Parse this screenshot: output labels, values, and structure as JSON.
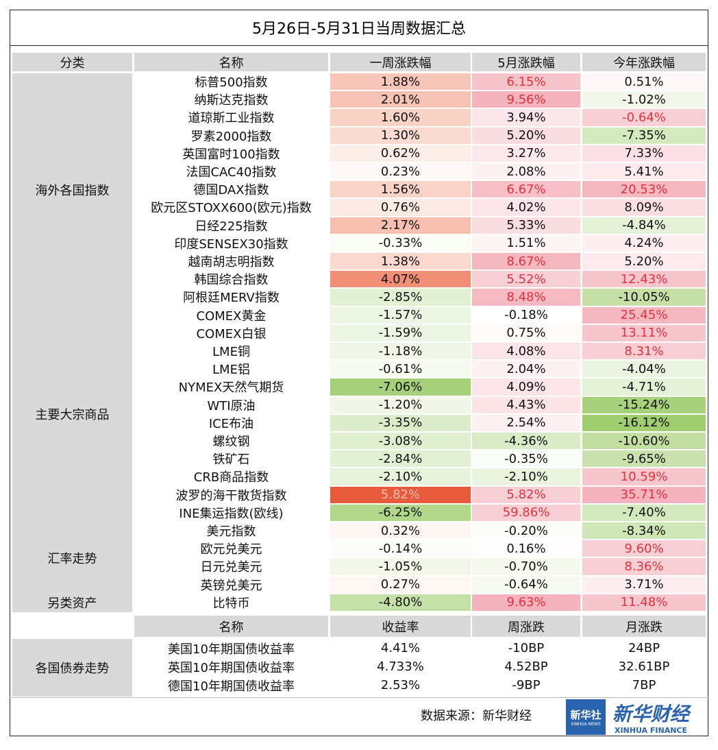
{
  "title": "5月26日-5月31日当周数据汇总",
  "header": [
    "分类",
    "名称",
    "一周涨跌幅",
    "5月涨跌幅",
    "今年涨跌幅"
  ],
  "groups": [
    {
      "label": "海外各国指数",
      "rows": [
        {
          "name": "标普500指数",
          "cells": [
            "1.88%",
            "6.15%",
            "0.51%"
          ],
          "bg": [
            "#f7c6b9",
            "#f7c3cb",
            "#fdf7f8"
          ],
          "fg": [
            "#111",
            "#e8303b",
            "#111"
          ]
        },
        {
          "name": "纳斯达克指数",
          "cells": [
            "2.01%",
            "9.56%",
            "-1.02%"
          ],
          "bg": [
            "#f7c3b5",
            "#f4b3bd",
            "#f2f8ec"
          ],
          "fg": [
            "#111",
            "#e8303b",
            "#111"
          ]
        },
        {
          "name": "道琼斯工业指数",
          "cells": [
            "1.60%",
            "3.94%",
            "-0.64%"
          ],
          "bg": [
            "#f9d2c6",
            "#fbe6e9",
            "#f8cfd5"
          ],
          "fg": [
            "#111",
            "#111",
            "#e8303b"
          ]
        },
        {
          "name": "罗素2000指数",
          "cells": [
            "1.30%",
            "5.20%",
            "-7.35%"
          ],
          "bg": [
            "#fadbd2",
            "#fadde1",
            "#d5e9bf"
          ],
          "fg": [
            "#111",
            "#111",
            "#111"
          ]
        },
        {
          "name": "英国富时100指数",
          "cells": [
            "0.62%",
            "3.27%",
            "7.33%"
          ],
          "bg": [
            "#fdeee9",
            "#fce9ec",
            "#fbe1e5"
          ],
          "fg": [
            "#111",
            "#111",
            "#111"
          ]
        },
        {
          "name": "法国CAC40指数",
          "cells": [
            "0.23%",
            "2.08%",
            "5.41%"
          ],
          "bg": [
            "#fef8f6",
            "#fdf1f3",
            "#fceaed"
          ],
          "fg": [
            "#111",
            "#111",
            "#111"
          ]
        },
        {
          "name": "德国DAX指数",
          "cells": [
            "1.56%",
            "6.67%",
            "20.53%"
          ],
          "bg": [
            "#f9d3c7",
            "#f7c0c8",
            "#f5b8c1"
          ],
          "fg": [
            "#111",
            "#e8303b",
            "#e8303b"
          ]
        },
        {
          "name": "欧元区STOXX600(欧元)指数",
          "cells": [
            "0.76%",
            "4.02%",
            "8.09%"
          ],
          "bg": [
            "#fcebe5",
            "#fbe5e8",
            "#fbdfe3"
          ],
          "fg": [
            "#111",
            "#111",
            "#111"
          ]
        },
        {
          "name": "日经225指数",
          "cells": [
            "2.17%",
            "5.33%",
            "-4.84%"
          ],
          "bg": [
            "#f6bfb0",
            "#fadde1",
            "#e6f2d8"
          ],
          "fg": [
            "#111",
            "#111",
            "#111"
          ]
        },
        {
          "name": "印度SENSEX30指数",
          "cells": [
            "-0.33%",
            "1.51%",
            "4.24%"
          ],
          "bg": [
            "#fafcf6",
            "#fdf4f5",
            "#fcedf0"
          ],
          "fg": [
            "#111",
            "#111",
            "#111"
          ]
        },
        {
          "name": "越南胡志明指数",
          "cells": [
            "1.38%",
            "8.67%",
            "5.20%"
          ],
          "bg": [
            "#fad8cf",
            "#f5b8c1",
            "#fceaed"
          ],
          "fg": [
            "#111",
            "#e8303b",
            "#111"
          ]
        },
        {
          "name": "韩国综合指数",
          "cells": [
            "4.07%",
            "5.52%",
            "12.43%"
          ],
          "bg": [
            "#f08e76",
            "#f8cfd5",
            "#f7c6cd"
          ],
          "fg": [
            "#111",
            "#e8303b",
            "#e8303b"
          ]
        },
        {
          "name": "阿根廷MERV指数",
          "cells": [
            "-2.85%",
            "8.48%",
            "-10.05%"
          ],
          "bg": [
            "#e2f0d3",
            "#f5b9c2",
            "#c5e0a6"
          ],
          "fg": [
            "#111",
            "#e8303b",
            "#111"
          ]
        }
      ]
    },
    {
      "label": "主要大宗商品",
      "rows": [
        {
          "name": "COMEX黄金",
          "cells": [
            "-1.57%",
            "-0.18%",
            "25.45%"
          ],
          "bg": [
            "#edf6e4",
            "#ffffff",
            "#f5b8c1"
          ],
          "fg": [
            "#111",
            "#111",
            "#e8303b"
          ]
        },
        {
          "name": "COMEX白银",
          "cells": [
            "-1.59%",
            "0.75%",
            "13.11%"
          ],
          "bg": [
            "#edf6e4",
            "#fefafa",
            "#f7c6cd"
          ],
          "fg": [
            "#111",
            "#111",
            "#e8303b"
          ]
        },
        {
          "name": "LME铜",
          "cells": [
            "-1.18%",
            "4.08%",
            "8.31%"
          ],
          "bg": [
            "#f0f7e9",
            "#fbe5e8",
            "#f8cfd5"
          ],
          "fg": [
            "#111",
            "#111",
            "#e8303b"
          ]
        },
        {
          "name": "LME铝",
          "cells": [
            "-0.61%",
            "2.04%",
            "-4.04%"
          ],
          "bg": [
            "#f6faf1",
            "#fdf1f3",
            "#ebf4e0"
          ],
          "fg": [
            "#111",
            "#111",
            "#111"
          ]
        },
        {
          "name": "NYMEX天然气期货",
          "cells": [
            "-7.06%",
            "4.09%",
            "-4.71%"
          ],
          "bg": [
            "#a6d17a",
            "#fbe5e8",
            "#e6f2d8"
          ],
          "fg": [
            "#111",
            "#111",
            "#111"
          ]
        },
        {
          "name": "WTI原油",
          "cells": [
            "-1.20%",
            "4.43%",
            "-15.24%"
          ],
          "bg": [
            "#f0f7e9",
            "#fbe3e6",
            "#a7d17b"
          ],
          "fg": [
            "#111",
            "#111",
            "#111"
          ]
        },
        {
          "name": "ICE布油",
          "cells": [
            "-3.35%",
            "2.54%",
            "-16.12%"
          ],
          "bg": [
            "#ddedcb",
            "#fcf0f2",
            "#9fcd6f"
          ],
          "fg": [
            "#111",
            "#111",
            "#111"
          ]
        },
        {
          "name": "螺纹钢",
          "cells": [
            "-3.08%",
            "-4.36%",
            "-10.60%"
          ],
          "bg": [
            "#e0efcf",
            "#d9ebc6",
            "#c2dfa1"
          ],
          "fg": [
            "#111",
            "#111",
            "#111"
          ]
        },
        {
          "name": "铁矿石",
          "cells": [
            "-2.84%",
            "-0.35%",
            "-9.65%"
          ],
          "bg": [
            "#e2f0d3",
            "#fbfdf8",
            "#c9e2ad"
          ],
          "fg": [
            "#111",
            "#111",
            "#111"
          ]
        },
        {
          "name": "CRB商品指数",
          "cells": [
            "-2.10%",
            "-2.10%",
            "10.59%"
          ],
          "bg": [
            "#e8f3dc",
            "#e9f3de",
            "#f7c6cd"
          ],
          "fg": [
            "#111",
            "#111",
            "#e8303b"
          ]
        },
        {
          "name": "波罗的海干散货指数",
          "cells": [
            "5.82%",
            "5.82%",
            "35.71%"
          ],
          "bg": [
            "#e85a3c",
            "#f8cfd5",
            "#f4b3bd"
          ],
          "fg": [
            "#ffc2b0",
            "#e8303b",
            "#e8303b"
          ]
        },
        {
          "name": "INE集运指数(欧线)",
          "cells": [
            "-6.25%",
            "59.86%",
            "-7.40%"
          ],
          "bg": [
            "#b2d78b",
            "#f8cfd5",
            "#d5e9bf"
          ],
          "fg": [
            "#111",
            "#e8303b",
            "#111"
          ]
        }
      ]
    },
    {
      "label": "汇率走势",
      "rows": [
        {
          "name": "美元指数",
          "cells": [
            "0.32%",
            "-0.20%",
            "-8.34%"
          ],
          "bg": [
            "#fef6f3",
            "#fcfdfa",
            "#cfe6b6"
          ],
          "fg": [
            "#111",
            "#111",
            "#111"
          ]
        },
        {
          "name": "欧元兑美元",
          "cells": [
            "-0.14%",
            "0.16%",
            "9.60%"
          ],
          "bg": [
            "#fcfdfa",
            "#fefcfc",
            "#f8cfd5"
          ],
          "fg": [
            "#111",
            "#111",
            "#e8303b"
          ]
        },
        {
          "name": "日元兑美元",
          "cells": [
            "-1.05%",
            "-0.70%",
            "8.36%"
          ],
          "bg": [
            "#f1f8ea",
            "#f5faef",
            "#f8cfd5"
          ],
          "fg": [
            "#111",
            "#111",
            "#e8303b"
          ]
        },
        {
          "name": "英镑兑美元",
          "cells": [
            "0.27%",
            "-0.64%",
            "3.71%"
          ],
          "bg": [
            "#fef7f4",
            "#f6faf1",
            "#fcedf0"
          ],
          "fg": [
            "#111",
            "#111",
            "#111"
          ]
        }
      ]
    },
    {
      "label": "另类资产",
      "rows": [
        {
          "name": "比特币",
          "cells": [
            "-4.80%",
            "9.63%",
            "11.48%"
          ],
          "bg": [
            "#c6e1a8",
            "#f4b3bd",
            "#f7c6cd"
          ],
          "fg": [
            "#111",
            "#e8303b",
            "#e8303b"
          ]
        }
      ]
    }
  ],
  "bonds": {
    "header": [
      "名称",
      "收益率",
      "周涨跌",
      "月涨跌"
    ],
    "label": "各国债券走势",
    "rows": [
      {
        "name": "美国10年期国债收益率",
        "cells": [
          "4.41%",
          "-10BP",
          "24BP"
        ]
      },
      {
        "name": "英国10年期国债收益率",
        "cells": [
          "4.733%",
          "4.52BP",
          "32.61BP"
        ]
      },
      {
        "name": "德国10年期国债收益率",
        "cells": [
          "2.53%",
          "-9BP",
          "7BP"
        ]
      }
    ]
  },
  "footer": {
    "source": "数据来源：新华财经",
    "logo_cn": "新华社",
    "logo_en": "XINHUA NEWS",
    "brand_cn": "新华财经",
    "brand_en": "XINHUA FINANCE"
  }
}
